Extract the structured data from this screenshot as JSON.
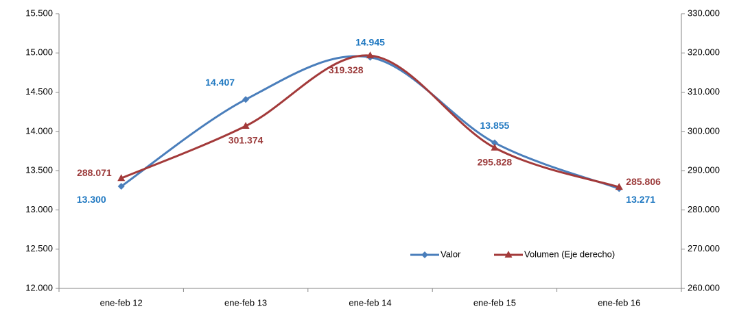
{
  "chart_data": {
    "type": "line",
    "categories": [
      "ene-feb 12",
      "ene-feb 13",
      "ene-feb 14",
      "ene-feb 15",
      "ene-feb 16"
    ],
    "series": [
      {
        "name": "Valor",
        "color": "#4a7ebb",
        "label_color": "#1f78c1",
        "marker": "diamond",
        "values": [
          13300,
          14407,
          14945,
          13855,
          13271
        ],
        "value_labels": [
          "13.300",
          "14.407",
          "14.945",
          "13.855",
          "13.271"
        ]
      },
      {
        "name": "Volumen (Eje derecho)",
        "color": "#a33a3a",
        "label_color": "#9b3a3a",
        "marker": "triangle",
        "axis": "y2",
        "values": [
          288071,
          301374,
          319328,
          295828,
          285806
        ],
        "value_labels": [
          "288.071",
          "301.374",
          "319.328",
          "295.828",
          "285.806"
        ]
      }
    ],
    "ylim": [
      12000,
      15500
    ],
    "yticks": [
      {
        "value": 12000,
        "label": "12.000"
      },
      {
        "value": 12500,
        "label": "12.500"
      },
      {
        "value": 13000,
        "label": "13.000"
      },
      {
        "value": 13500,
        "label": "13.500"
      },
      {
        "value": 14000,
        "label": "14.000"
      },
      {
        "value": 14500,
        "label": "14.500"
      },
      {
        "value": 15000,
        "label": "15.000"
      },
      {
        "value": 15500,
        "label": "15.500"
      }
    ],
    "y2lim": [
      260000,
      330000
    ],
    "y2ticks": [
      {
        "value": 260000,
        "label": "260.000"
      },
      {
        "value": 270000,
        "label": "270.000"
      },
      {
        "value": 280000,
        "label": "280.000"
      },
      {
        "value": 290000,
        "label": "290.000"
      },
      {
        "value": 300000,
        "label": "300.000"
      },
      {
        "value": 310000,
        "label": "310.000"
      },
      {
        "value": 320000,
        "label": "320.000"
      },
      {
        "value": 330000,
        "label": "330.000"
      }
    ],
    "grid": false
  }
}
